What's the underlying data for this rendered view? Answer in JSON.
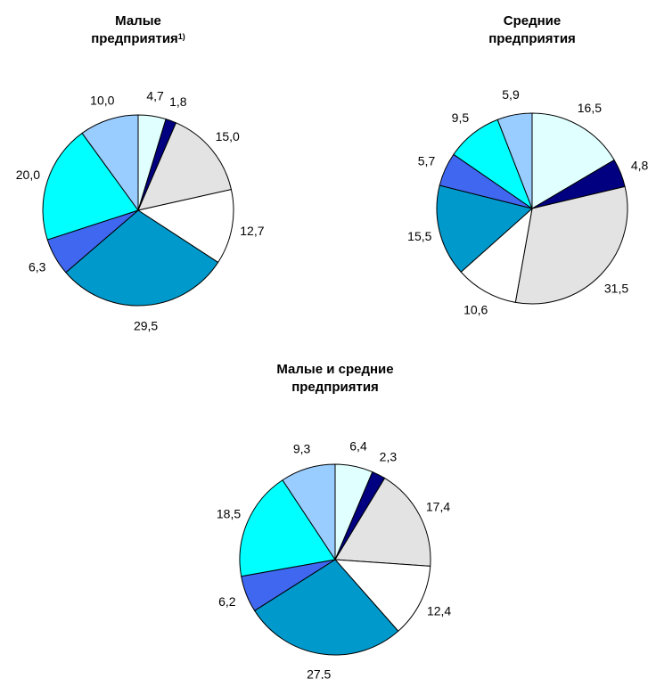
{
  "colors": [
    "#E0FFFF",
    "#000080",
    "#E3E3E3",
    "#FFFFFF",
    "#0099CC",
    "#3F67F0",
    "#00FFFF",
    "#99CCFF"
  ],
  "chart_data": [
    {
      "type": "pie",
      "title": "Малые предприятия",
      "title_lines": [
        "Малые",
        "предприятия"
      ],
      "title_footnote": "1)",
      "values": [
        4.7,
        1.8,
        15.0,
        12.7,
        29.5,
        6.3,
        20.0,
        10.0
      ],
      "labels": [
        "4,7",
        "1,8",
        "15,0",
        "12,7",
        "29,5",
        "6,3",
        "20,0",
        "10,0"
      ]
    },
    {
      "type": "pie",
      "title": "Средние предприятия",
      "title_lines": [
        "Средние",
        "предприятия"
      ],
      "title_footnote": "",
      "values": [
        16.5,
        4.8,
        31.5,
        10.6,
        15.5,
        5.7,
        9.5,
        5.9
      ],
      "labels": [
        "16,5",
        "4,8",
        "31,5",
        "10,6",
        "15,5",
        "5,7",
        "9,5",
        "5,9"
      ]
    },
    {
      "type": "pie",
      "title": "Малые и средние предприятия",
      "title_lines": [
        "Малые и средние",
        "предприятия"
      ],
      "title_footnote": "",
      "values": [
        6.4,
        2.3,
        17.4,
        12.4,
        27.5,
        6.2,
        18.5,
        9.3
      ],
      "labels": [
        "6,4",
        "2,3",
        "17,4",
        "12,4",
        "27,5",
        "6,2",
        "18,5",
        "9,3"
      ]
    }
  ]
}
